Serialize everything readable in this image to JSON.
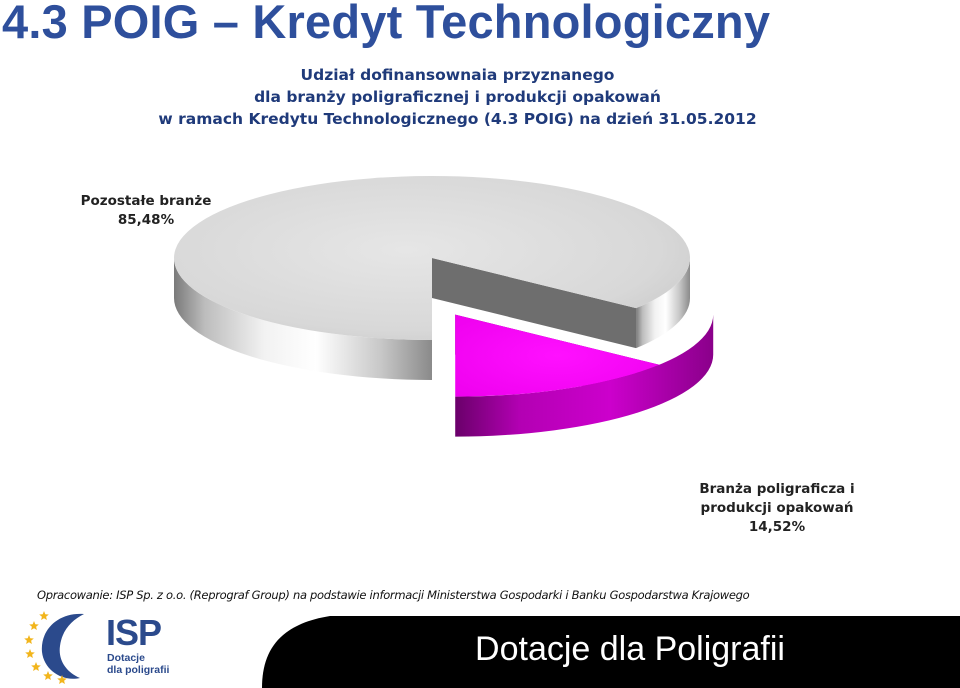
{
  "slide": {
    "title": "4.3 POIG – Kredyt Technologiczny",
    "source": "Opracowanie: ISP Sp. z o.o. (Reprograf Group) na podstawie informacji Ministerstwa Gospodarki i Banku Gospodarstwa Krajowego"
  },
  "chart_data": {
    "type": "pie",
    "title_lines": [
      "Udział dofinansownaia przyznanego",
      "dla branży poligraficznej i produkcji opakowań",
      "w ramach Kredytu Technologicznego (4.3 POIG) na dzień 31.05.2012"
    ],
    "slices": [
      {
        "name_lines": [
          "Pozostałe branże"
        ],
        "value": 85.48,
        "value_label": "85,48%",
        "color": "#d9d9d9",
        "exploded": false
      },
      {
        "name_lines": [
          "Branża poligraficza i",
          "produkcji opakowań"
        ],
        "value": 14.52,
        "value_label": "14,52%",
        "color": "#ff00ff",
        "exploded": true
      }
    ]
  },
  "footer": {
    "banner_text": "Dotacje dla Poligrafii",
    "logo_name": "ISP",
    "logo_tagline_lines": [
      "Dotacje",
      "dla poligrafii"
    ],
    "colors": {
      "banner": "#000000",
      "logo": "#2b4a8c",
      "stars": "#f2b51c"
    }
  }
}
